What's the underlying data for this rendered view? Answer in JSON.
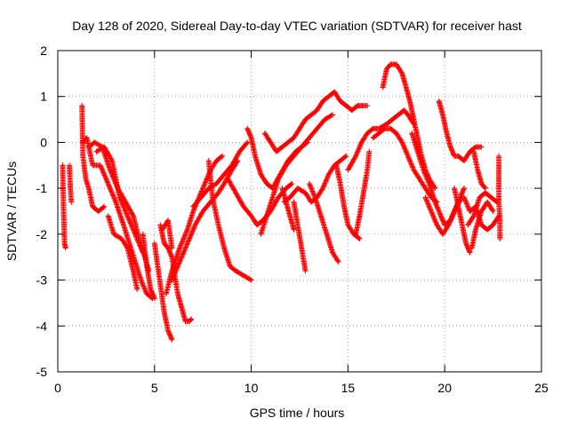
{
  "chart_data": {
    "type": "scatter",
    "title": "Day 128 of 2020, Sidereal Day-to-day VTEC variation (SDTVAR) for receiver hast",
    "xlabel": "GPS time / hours",
    "ylabel": "SDTVAR / TECUs",
    "xlim": [
      0,
      25
    ],
    "ylim": [
      -5,
      2
    ],
    "xticks": [
      0,
      5,
      10,
      15,
      20,
      25
    ],
    "yticks": [
      -5,
      -4,
      -3,
      -2,
      -1,
      0,
      1,
      2
    ],
    "grid": true,
    "marker": "+",
    "series_color": "#ff0000",
    "tracks": [
      [
        [
          0.25,
          -0.5
        ],
        [
          0.3,
          -1.5
        ],
        [
          0.35,
          -2.2
        ],
        [
          0.4,
          -2.3
        ]
      ],
      [
        [
          0.6,
          -0.5
        ],
        [
          0.65,
          -1.0
        ],
        [
          0.7,
          -1.3
        ]
      ],
      [
        [
          1.25,
          0.8
        ],
        [
          1.3,
          -0.3
        ],
        [
          1.45,
          -0.8
        ],
        [
          1.6,
          -1.0
        ],
        [
          1.8,
          -1.4
        ],
        [
          2.1,
          -1.5
        ],
        [
          2.4,
          -1.4
        ]
      ],
      [
        [
          1.3,
          0.0
        ],
        [
          1.5,
          0.1
        ],
        [
          1.8,
          -0.5
        ],
        [
          2.2,
          -0.5
        ],
        [
          2.6,
          -0.9
        ],
        [
          3.0,
          -1.3
        ],
        [
          3.4,
          -1.8
        ],
        [
          3.7,
          -2.2
        ],
        [
          4.0,
          -2.6
        ],
        [
          4.3,
          -3.0
        ],
        [
          4.6,
          -3.3
        ],
        [
          4.9,
          -3.4
        ]
      ],
      [
        [
          1.6,
          -0.1
        ],
        [
          1.9,
          0.0
        ],
        [
          2.3,
          -0.1
        ],
        [
          2.7,
          -0.6
        ],
        [
          3.1,
          -1.0
        ],
        [
          3.5,
          -1.3
        ],
        [
          3.9,
          -1.6
        ],
        [
          4.2,
          -2.1
        ],
        [
          4.5,
          -2.5
        ],
        [
          4.7,
          -2.8
        ]
      ],
      [
        [
          2.0,
          -0.2
        ],
        [
          2.4,
          -0.1
        ],
        [
          2.8,
          -0.4
        ],
        [
          3.2,
          -1.2
        ],
        [
          3.6,
          -1.6
        ],
        [
          4.0,
          -2.0
        ],
        [
          4.4,
          -2.4
        ]
      ],
      [
        [
          2.6,
          -1.6
        ],
        [
          2.9,
          -2.0
        ],
        [
          3.3,
          -2.1
        ],
        [
          3.6,
          -2.3
        ],
        [
          3.9,
          -2.8
        ],
        [
          4.1,
          -3.2
        ]
      ],
      [
        [
          4.4,
          -2.0
        ],
        [
          4.6,
          -2.7
        ],
        [
          4.8,
          -3.2
        ],
        [
          5.0,
          -3.4
        ]
      ],
      [
        [
          5.0,
          -2.2
        ],
        [
          5.1,
          -2.5
        ],
        [
          5.3,
          -3.1
        ],
        [
          5.5,
          -3.7
        ],
        [
          5.7,
          -4.1
        ],
        [
          5.9,
          -4.3
        ]
      ],
      [
        [
          5.3,
          -1.8
        ],
        [
          5.5,
          -2.2
        ],
        [
          5.7,
          -2.3
        ],
        [
          5.9,
          -2.5
        ],
        [
          6.0,
          -2.8
        ],
        [
          6.2,
          -3.3
        ],
        [
          6.4,
          -3.6
        ],
        [
          6.6,
          -3.9
        ],
        [
          6.8,
          -3.9
        ],
        [
          6.9,
          -3.85
        ]
      ],
      [
        [
          5.4,
          -1.9
        ],
        [
          5.7,
          -1.7
        ],
        [
          5.9,
          -2.3
        ]
      ],
      [
        [
          5.6,
          -3.3
        ],
        [
          5.9,
          -2.8
        ],
        [
          6.3,
          -2.3
        ],
        [
          6.7,
          -1.9
        ],
        [
          7.0,
          -1.5
        ],
        [
          7.3,
          -1.2
        ],
        [
          7.6,
          -0.9
        ],
        [
          7.9,
          -0.6
        ],
        [
          8.2,
          -0.4
        ],
        [
          8.5,
          -0.3
        ]
      ],
      [
        [
          5.9,
          -3.0
        ],
        [
          6.3,
          -2.6
        ],
        [
          6.7,
          -2.2
        ],
        [
          7.1,
          -1.8
        ],
        [
          7.5,
          -1.5
        ],
        [
          7.9,
          -1.3
        ],
        [
          8.3,
          -1.1
        ],
        [
          8.6,
          -0.9
        ],
        [
          9.0,
          -0.6
        ],
        [
          9.3,
          -0.4
        ]
      ],
      [
        [
          7.0,
          -1.4
        ],
        [
          7.4,
          -1.2
        ],
        [
          7.8,
          -1.0
        ],
        [
          8.2,
          -0.9
        ],
        [
          8.6,
          -0.7
        ],
        [
          9.0,
          -0.5
        ],
        [
          9.4,
          -0.2
        ],
        [
          9.8,
          0.0
        ]
      ],
      [
        [
          7.8,
          -0.4
        ],
        [
          8.0,
          -1.2
        ],
        [
          8.3,
          -1.8
        ],
        [
          8.6,
          -2.3
        ],
        [
          8.9,
          -2.7
        ],
        [
          9.2,
          -2.8
        ],
        [
          9.6,
          -2.9
        ],
        [
          10.0,
          -3.0
        ]
      ],
      [
        [
          8.8,
          -0.8
        ],
        [
          9.2,
          -1.1
        ],
        [
          9.6,
          -1.4
        ],
        [
          10.0,
          -1.6
        ],
        [
          10.3,
          -1.8
        ],
        [
          10.6,
          -1.7
        ],
        [
          11.0,
          -1.5
        ],
        [
          11.4,
          -1.2
        ],
        [
          11.8,
          -1.0
        ],
        [
          12.1,
          -0.9
        ]
      ],
      [
        [
          9.8,
          0.3
        ],
        [
          10.0,
          0.1
        ],
        [
          10.2,
          -0.3
        ],
        [
          10.5,
          -0.7
        ],
        [
          10.8,
          -0.9
        ],
        [
          11.1,
          -1.0
        ],
        [
          11.5,
          -0.7
        ],
        [
          11.9,
          -0.4
        ],
        [
          12.3,
          -0.2
        ],
        [
          12.6,
          -0.1
        ],
        [
          12.9,
          0.0
        ]
      ],
      [
        [
          10.5,
          -2.0
        ],
        [
          10.8,
          -1.6
        ],
        [
          11.1,
          -1.2
        ],
        [
          11.4,
          -0.8
        ],
        [
          11.8,
          -0.5
        ],
        [
          12.2,
          -0.3
        ],
        [
          12.6,
          -0.1
        ],
        [
          13.0,
          0.1
        ],
        [
          13.4,
          0.3
        ],
        [
          13.8,
          0.5
        ],
        [
          14.2,
          0.6
        ]
      ],
      [
        [
          10.7,
          0.2
        ],
        [
          11.0,
          0.0
        ],
        [
          11.3,
          -0.2
        ],
        [
          11.6,
          -0.1
        ],
        [
          11.9,
          0.0
        ],
        [
          12.2,
          0.1
        ],
        [
          12.5,
          0.3
        ],
        [
          12.8,
          0.5
        ],
        [
          13.1,
          0.6
        ],
        [
          13.4,
          0.7
        ],
        [
          13.7,
          0.9
        ],
        [
          14.0,
          1.0
        ],
        [
          14.3,
          1.1
        ],
        [
          14.6,
          0.9
        ],
        [
          14.9,
          0.8
        ],
        [
          15.2,
          0.7
        ],
        [
          15.5,
          0.8
        ],
        [
          15.8,
          0.8
        ],
        [
          16.0,
          0.8
        ]
      ],
      [
        [
          11.6,
          -1.0
        ],
        [
          11.8,
          -1.3
        ],
        [
          12.0,
          -1.6
        ],
        [
          12.2,
          -1.9
        ]
      ],
      [
        [
          11.7,
          -1.3
        ],
        [
          12.0,
          -1.2
        ],
        [
          12.4,
          -1.0
        ],
        [
          12.8,
          -1.1
        ],
        [
          13.1,
          -1.3
        ],
        [
          13.4,
          -1.2
        ],
        [
          13.7,
          -1.0
        ],
        [
          14.0,
          -0.7
        ],
        [
          14.3,
          -0.5
        ],
        [
          14.6,
          -0.4
        ],
        [
          14.9,
          -0.3
        ]
      ],
      [
        [
          12.2,
          -1.3
        ],
        [
          12.4,
          -1.8
        ],
        [
          12.6,
          -2.3
        ],
        [
          12.8,
          -2.8
        ]
      ],
      [
        [
          13.0,
          -0.9
        ],
        [
          13.3,
          -1.2
        ],
        [
          13.6,
          -1.6
        ],
        [
          13.9,
          -2.0
        ],
        [
          14.2,
          -2.4
        ],
        [
          14.5,
          -2.6
        ]
      ],
      [
        [
          14.4,
          -0.5
        ],
        [
          14.6,
          -0.9
        ],
        [
          14.8,
          -1.4
        ],
        [
          15.0,
          -1.8
        ],
        [
          15.3,
          -2.0
        ],
        [
          15.6,
          -2.1
        ]
      ],
      [
        [
          15.0,
          -0.6
        ],
        [
          15.4,
          -0.3
        ],
        [
          15.7,
          0.0
        ],
        [
          16.0,
          0.2
        ],
        [
          16.3,
          0.3
        ],
        [
          16.6,
          0.3
        ],
        [
          17.0,
          0.4
        ],
        [
          17.3,
          0.5
        ],
        [
          17.6,
          0.6
        ],
        [
          17.9,
          0.7
        ],
        [
          18.1,
          0.6
        ],
        [
          18.4,
          0.4
        ]
      ],
      [
        [
          15.4,
          -2.0
        ],
        [
          15.6,
          -1.6
        ],
        [
          15.8,
          -1.1
        ],
        [
          16.0,
          -0.6
        ],
        [
          16.1,
          -0.2
        ]
      ],
      [
        [
          16.3,
          0.1
        ],
        [
          16.6,
          0.2
        ],
        [
          16.9,
          0.3
        ],
        [
          17.2,
          0.3
        ],
        [
          17.5,
          0.2
        ],
        [
          17.8,
          0.0
        ],
        [
          18.1,
          -0.3
        ],
        [
          18.4,
          -0.6
        ],
        [
          18.7,
          -0.8
        ],
        [
          19.0,
          -1.0
        ],
        [
          19.3,
          -1.2
        ],
        [
          19.6,
          -1.3
        ]
      ],
      [
        [
          16.8,
          1.2
        ],
        [
          17.0,
          1.6
        ],
        [
          17.2,
          1.7
        ],
        [
          17.5,
          1.7
        ],
        [
          17.8,
          1.5
        ],
        [
          18.0,
          1.2
        ],
        [
          18.2,
          0.9
        ],
        [
          18.4,
          0.5
        ],
        [
          18.6,
          0.1
        ],
        [
          18.8,
          -0.3
        ],
        [
          19.0,
          -0.6
        ],
        [
          19.2,
          -0.8
        ],
        [
          19.5,
          -1.0
        ]
      ],
      [
        [
          18.3,
          0.2
        ],
        [
          18.6,
          -0.2
        ],
        [
          18.9,
          -0.6
        ],
        [
          19.2,
          -0.9
        ],
        [
          19.5,
          -1.3
        ],
        [
          19.8,
          -1.6
        ],
        [
          20.0,
          -1.8
        ],
        [
          20.3,
          -1.7
        ],
        [
          20.6,
          -1.4
        ],
        [
          20.9,
          -1.2
        ]
      ],
      [
        [
          19.0,
          -1.2
        ],
        [
          19.3,
          -1.5
        ],
        [
          19.6,
          -1.8
        ],
        [
          19.9,
          -2.0
        ],
        [
          20.2,
          -1.8
        ],
        [
          20.5,
          -1.5
        ],
        [
          20.8,
          -1.2
        ],
        [
          21.0,
          -1.0
        ]
      ],
      [
        [
          19.7,
          0.9
        ],
        [
          19.9,
          0.6
        ],
        [
          20.1,
          0.2
        ],
        [
          20.3,
          -0.1
        ],
        [
          20.5,
          -0.3
        ],
        [
          20.7,
          -0.3
        ],
        [
          21.0,
          -0.4
        ],
        [
          21.3,
          -0.2
        ],
        [
          21.6,
          -0.1
        ],
        [
          21.9,
          -0.1
        ]
      ],
      [
        [
          20.5,
          -1.0
        ],
        [
          20.7,
          -1.4
        ],
        [
          20.9,
          -1.8
        ],
        [
          21.1,
          -2.2
        ],
        [
          21.3,
          -2.4
        ]
      ],
      [
        [
          21.0,
          -1.2
        ],
        [
          21.3,
          -1.5
        ],
        [
          21.6,
          -1.4
        ],
        [
          21.9,
          -1.8
        ],
        [
          22.2,
          -1.9
        ],
        [
          22.5,
          -1.8
        ],
        [
          22.8,
          -1.6
        ]
      ],
      [
        [
          21.2,
          -1.8
        ],
        [
          21.5,
          -1.6
        ],
        [
          21.8,
          -1.2
        ],
        [
          22.1,
          -1.1
        ],
        [
          22.4,
          -1.2
        ],
        [
          22.7,
          -1.3
        ]
      ],
      [
        [
          21.4,
          -2.3
        ],
        [
          21.6,
          -1.9
        ],
        [
          21.9,
          -1.5
        ],
        [
          22.2,
          -1.3
        ],
        [
          22.5,
          -1.5
        ]
      ],
      [
        [
          21.5,
          -0.2
        ],
        [
          21.7,
          -0.6
        ],
        [
          21.9,
          -0.9
        ],
        [
          22.1,
          -1.0
        ]
      ],
      [
        [
          22.8,
          -0.3
        ],
        [
          22.8,
          -0.8
        ],
        [
          22.8,
          -1.3
        ],
        [
          22.85,
          -1.7
        ],
        [
          22.85,
          -2.1
        ]
      ]
    ]
  }
}
